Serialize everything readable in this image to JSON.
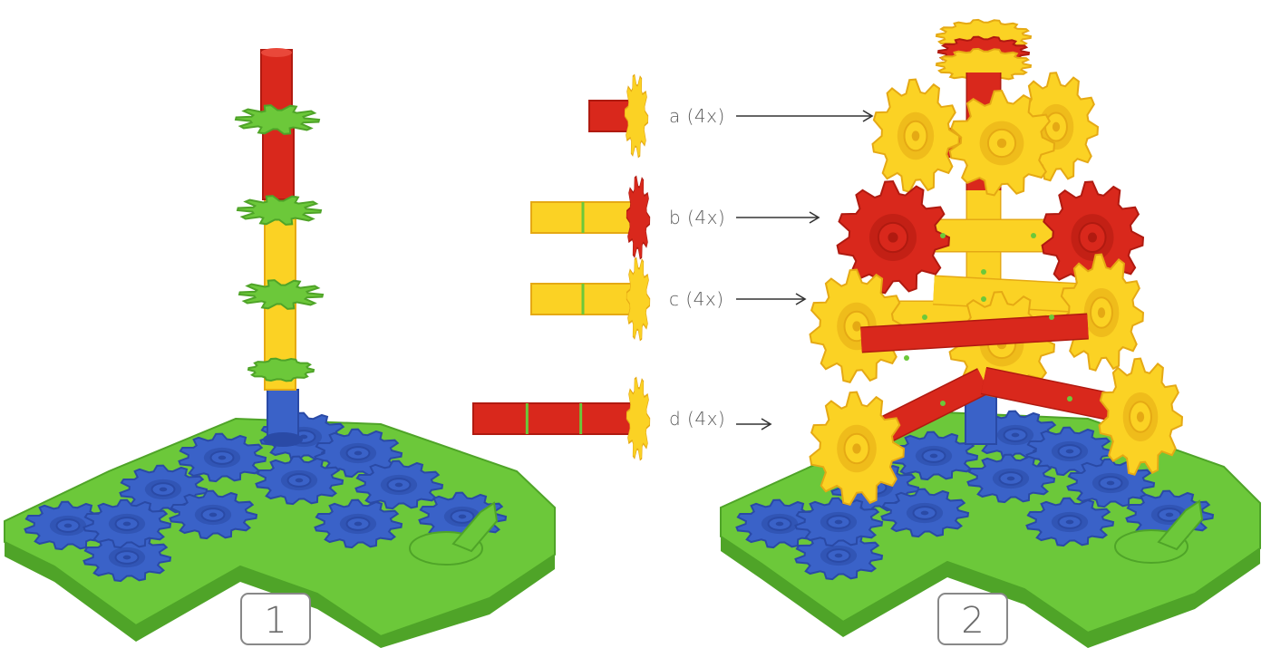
{
  "colors": {
    "blue": "#3a62c8",
    "blue_dark": "#2a4aa6",
    "green": "#6cc83a",
    "green_dark": "#4fa428",
    "red": "#d9281c",
    "red_dark": "#b01a10",
    "yellow": "#fbd224",
    "yellow_dark": "#e5a914",
    "label": "#5a5a5a"
  },
  "steps": [
    {
      "number": "1"
    },
    {
      "number": "2"
    }
  ],
  "parts": [
    {
      "label": "a (4x)",
      "rod_color": "red",
      "gear_color": "yellow"
    },
    {
      "label": "b (4x)",
      "rod_color": "yellow",
      "gear_color": "red"
    },
    {
      "label": "c (4x)",
      "rod_color": "yellow",
      "gear_color": "yellow"
    },
    {
      "label": "d (4x)",
      "rod_color": "red",
      "gear_color": "yellow"
    }
  ]
}
